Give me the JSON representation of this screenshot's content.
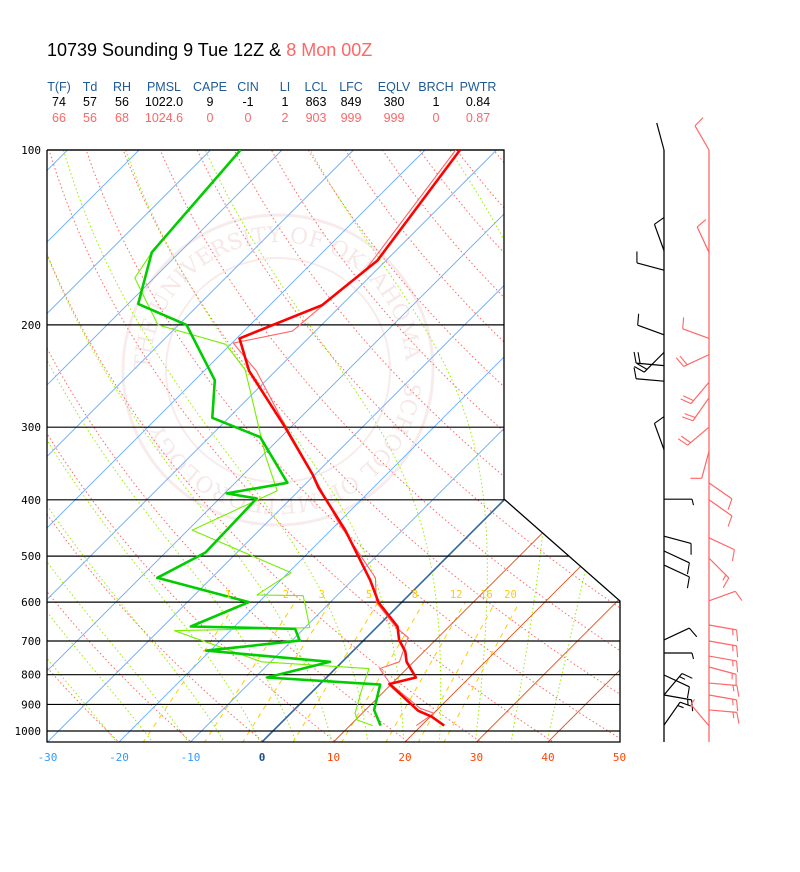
{
  "title": {
    "prefix": "10739 Sounding 9 Tue 12Z & ",
    "second": "8 Mon 00Z",
    "prefix_color": "#000000",
    "second_color": "#ff6666"
  },
  "stats": {
    "headers": [
      "T(F)",
      "Td",
      "RH",
      "PMSL",
      "CAPE",
      "CIN",
      "LI",
      "LCL",
      "LFC",
      "EQLV",
      "BRCH",
      "PWTR"
    ],
    "header_color": "#1f5a96",
    "rows": [
      {
        "color": "#000000",
        "values": [
          "74",
          "57",
          "56",
          "1022.0",
          "9",
          "-1",
          "1",
          "863",
          "849",
          "380",
          "1",
          "0.84"
        ]
      },
      {
        "color": "#ff6666",
        "values": [
          "66",
          "56",
          "68",
          "1024.6",
          "0",
          "0",
          "2",
          "903",
          "999",
          "999",
          "0",
          "0.87"
        ]
      }
    ]
  },
  "watermark_text": "THE UNIVERSITY OF OKLAHOMA · SCHOOL OF METEOROLOGY",
  "chart_data": {
    "type": "line",
    "subtype": "skew-T log-P",
    "xlabel": "",
    "ylabel": "",
    "x_unit": "°C",
    "y_unit": "mb",
    "y_scale": "log",
    "xlim": [
      -30,
      50
    ],
    "ylim": [
      1000,
      100
    ],
    "x_ticks": [
      "-30",
      "-20",
      "-10",
      "0",
      "10",
      "20",
      "30",
      "40",
      "50"
    ],
    "y_ticks": [
      "100",
      "200",
      "300",
      "400",
      "500",
      "600",
      "700",
      "800",
      "900",
      "1000"
    ],
    "mixing_ratio_labels": [
      "1",
      "2",
      "3",
      "5",
      "8",
      "12",
      "16",
      "20"
    ],
    "mixing_ratio_values": [
      1,
      2,
      3,
      5,
      8,
      12,
      16,
      20
    ],
    "colors": {
      "isotherm_negative": "#66aaff",
      "isotherm_zero": "#336699",
      "isotherm_positive": "#d9531e",
      "dry_adiabat": "#ff6666",
      "moist_adiabat": "#99ee00",
      "mixing_ratio": "#ffcc00",
      "tick_negative": "#3399ff",
      "tick_zero": "#1f4f80",
      "tick_positive": "#ff4400"
    },
    "soundings": [
      {
        "label": "9 Tue 12Z",
        "temp_color": "#ff0000",
        "dew_color": "#00cc00",
        "barb_color": "#000000",
        "emphasis": "thick",
        "temperature": [
          [
            979,
            23.2
          ],
          [
            945,
            20.2
          ],
          [
            923,
            17.5
          ],
          [
            830,
            9.7
          ],
          [
            809,
            12.5
          ],
          [
            760,
            9.0
          ],
          [
            730,
            7.4
          ],
          [
            697,
            4.9
          ],
          [
            661,
            2.8
          ],
          [
            601,
            -3.2
          ],
          [
            550,
            -7.5
          ],
          [
            451,
            -18.0
          ],
          [
            381,
            -27.7
          ],
          [
            362,
            -30.3
          ],
          [
            300,
            -40.8
          ],
          [
            240,
            -53.7
          ],
          [
            211,
            -59.6
          ],
          [
            185,
            -52.7
          ],
          [
            155,
            -51.2
          ],
          [
            100,
            -55.1
          ]
        ],
        "dewpoint": [
          [
            979,
            14.3
          ],
          [
            920,
            11.2
          ],
          [
            832,
            8.5
          ],
          [
            809,
            -8.3
          ],
          [
            760,
            -1.7
          ],
          [
            727,
            -20.6
          ],
          [
            699,
            -8.9
          ],
          [
            667,
            -11.2
          ],
          [
            661,
            -26.1
          ],
          [
            600,
            -21.4
          ],
          [
            545,
            -37.6
          ],
          [
            493,
            -34.4
          ],
          [
            398,
            -34.8
          ],
          [
            390,
            -39.7
          ],
          [
            374,
            -32.7
          ],
          [
            312,
            -42.9
          ],
          [
            289,
            -52.3
          ],
          [
            249,
            -57.2
          ],
          [
            200,
            -68.9
          ],
          [
            184,
            -78.6
          ],
          [
            150,
            -83.9
          ],
          [
            100,
            -85.8
          ]
        ],
        "wind": [
          [
            100,
            345,
            2
          ],
          [
            149,
            340,
            10
          ],
          [
            161,
            285,
            10
          ],
          [
            208,
            290,
            10
          ],
          [
            223,
            225,
            20
          ],
          [
            235,
            275,
            20
          ],
          [
            250,
            275,
            10
          ],
          [
            328,
            340,
            10
          ],
          [
            399,
            90,
            5
          ],
          [
            462,
            105,
            10
          ],
          [
            490,
            115,
            10
          ],
          [
            518,
            115,
            10
          ],
          [
            697,
            65,
            10
          ],
          [
            734,
            90,
            5
          ],
          [
            801,
            115,
            10
          ],
          [
            867,
            40,
            15
          ],
          [
            867,
            100,
            15
          ],
          [
            977,
            35,
            15
          ]
        ]
      },
      {
        "label": "8 Mon 00Z",
        "temp_color": "#ff6666",
        "dew_color": "#77ee00",
        "barb_color": "#ff6666",
        "emphasis": "thin",
        "temperature": [
          [
            979,
            19.3
          ],
          [
            932,
            20.0
          ],
          [
            914,
            17.4
          ],
          [
            828,
            9.7
          ],
          [
            781,
            6.2
          ],
          [
            760,
            8.0
          ],
          [
            690,
            5.8
          ],
          [
            664,
            2.8
          ],
          [
            601,
            -3.5
          ],
          [
            545,
            -7.1
          ],
          [
            437,
            -20.1
          ],
          [
            355,
            -31.3
          ],
          [
            290,
            -42.5
          ],
          [
            240,
            -52.7
          ],
          [
            215,
            -59.8
          ],
          [
            205,
            -53.2
          ],
          [
            160,
            -51.6
          ],
          [
            100,
            -55.7
          ]
        ],
        "dewpoint": [
          [
            979,
            13.2
          ],
          [
            957,
            10.2
          ],
          [
            932,
            9.0
          ],
          [
            848,
            6.6
          ],
          [
            781,
            4.7
          ],
          [
            760,
            -11.3
          ],
          [
            672,
            -27.8
          ],
          [
            664,
            -9.3
          ],
          [
            585,
            -14.7
          ],
          [
            583,
            -21.3
          ],
          [
            534,
            -19.6
          ],
          [
            451,
            -39.4
          ],
          [
            386,
            -33.0
          ],
          [
            337,
            -39.4
          ],
          [
            239,
            -54.4
          ],
          [
            216,
            -60.7
          ],
          [
            200,
            -72.9
          ],
          [
            166,
            -82.7
          ],
          [
            150,
            -83.9
          ],
          [
            100,
            -85.8
          ]
        ],
        "wind": [
          [
            100,
            330,
            10
          ],
          [
            150,
            335,
            10
          ],
          [
            211,
            290,
            10
          ],
          [
            225,
            245,
            20
          ],
          [
            251,
            220,
            20
          ],
          [
            267,
            215,
            20
          ],
          [
            300,
            230,
            20
          ],
          [
            330,
            195,
            10
          ],
          [
            374,
            125,
            10
          ],
          [
            400,
            125,
            10
          ],
          [
            465,
            115,
            10
          ],
          [
            504,
            135,
            15
          ],
          [
            597,
            70,
            10
          ],
          [
            657,
            100,
            15
          ],
          [
            700,
            100,
            15
          ],
          [
            743,
            100,
            15
          ],
          [
            776,
            105,
            15
          ],
          [
            827,
            95,
            15
          ],
          [
            867,
            100,
            15
          ],
          [
            920,
            95,
            15
          ],
          [
            980,
            320,
            5
          ]
        ]
      }
    ]
  }
}
